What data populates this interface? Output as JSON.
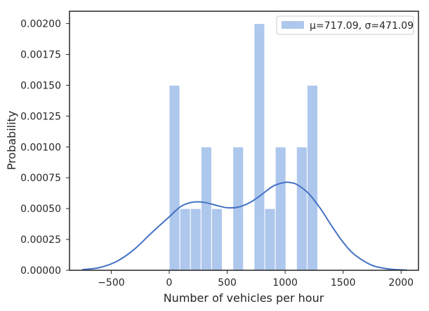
{
  "chart_data": {
    "type": "bar",
    "subtype": "histogram-with-kde",
    "xlabel": "Number of vehicles per hour",
    "ylabel": "Probability",
    "xlim": [
      -860,
      2150
    ],
    "ylim": [
      0,
      0.0021
    ],
    "xticks": [
      -500,
      0,
      500,
      1000,
      1500,
      2000
    ],
    "xtick_labels": [
      "−500",
      "0",
      "500",
      "1000",
      "1500",
      "2000"
    ],
    "yticks": [
      0,
      0.00025,
      0.0005,
      0.00075,
      0.001,
      0.00125,
      0.0015,
      0.00175,
      0.002
    ],
    "ytick_labels": [
      "0.00000",
      "0.00025",
      "0.00050",
      "0.00075",
      "0.00100",
      "0.00125",
      "0.00150",
      "0.00175",
      "0.00200"
    ],
    "grid": false,
    "legend_position": "top-right",
    "legend": [
      "μ=717.09, σ=471.09"
    ],
    "colors": {
      "bar": "#aec7ec",
      "kde": "#4472c4",
      "frame": "#262626"
    },
    "bins": {
      "edges": [
        0,
        91.5,
        183,
        274.5,
        366,
        457.5,
        549,
        640.5,
        732,
        823.5,
        915,
        1006.5,
        1098,
        1189.5,
        1281,
        1372.5
      ],
      "values": [
        0.0015,
        0.0005,
        0.0005,
        0.001,
        0.0005,
        0,
        0.001,
        0,
        0.002,
        0.0005,
        0.001,
        0,
        0.001,
        0.0015,
        0
      ]
    },
    "kde": {
      "x": [
        -750,
        -600,
        -450,
        -300,
        -150,
        0,
        100,
        200,
        300,
        400,
        500,
        600,
        700,
        800,
        900,
        1000,
        1050,
        1100,
        1200,
        1300,
        1400,
        1500,
        1600,
        1750,
        1900,
        2050
      ],
      "y": [
        5.5e-06,
        2.2e-05,
        7.3e-05,
        0.000171,
        0.000305,
        0.000433,
        0.000517,
        0.000552,
        0.000551,
        0.000528,
        0.000507,
        0.000513,
        0.000551,
        0.000616,
        0.000684,
        0.000713,
        0.00071,
        0.000696,
        0.000625,
        0.000506,
        0.000362,
        0.000227,
        0.000126,
        4e-05,
        1e-05,
        2e-06
      ]
    }
  }
}
